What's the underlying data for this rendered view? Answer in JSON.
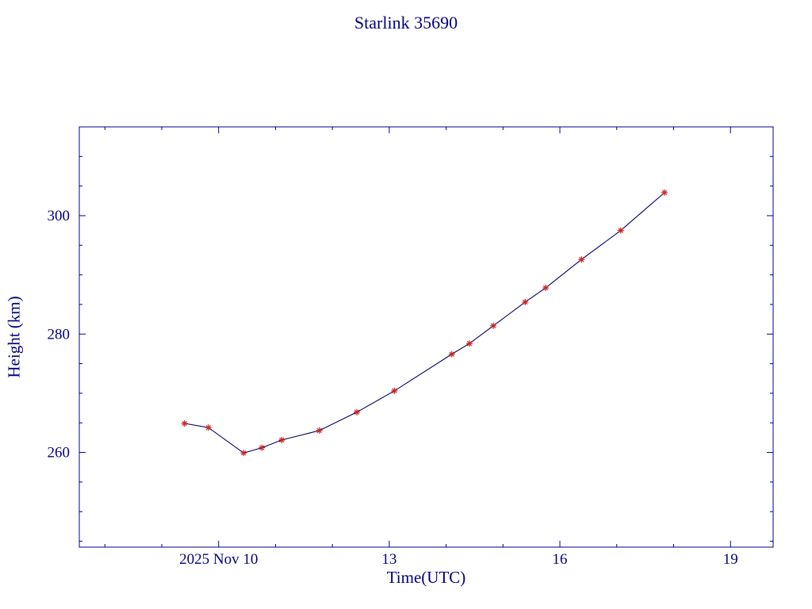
{
  "page": {
    "background_color": "#ffffff"
  },
  "chart_data": {
    "type": "line",
    "title": "Starlink 35690",
    "xlabel": "Time(UTC)",
    "ylabel": "Height (km)",
    "xlim": [
      7.55,
      19.75
    ],
    "ylim": [
      244,
      315
    ],
    "x_ticks": [
      {
        "value": 10,
        "label": "2025 Nov 10"
      },
      {
        "value": 13,
        "label": "13"
      },
      {
        "value": 16,
        "label": "16"
      },
      {
        "value": 19,
        "label": "19"
      }
    ],
    "x_minor_step": 1,
    "y_ticks": [
      {
        "value": 260,
        "label": "260"
      },
      {
        "value": 280,
        "label": "280"
      },
      {
        "value": 300,
        "label": "300"
      }
    ],
    "y_minor_step": 5,
    "grid": false,
    "legend": "none",
    "colors": {
      "axis": "#000080",
      "text": "#000080",
      "line": "#000066",
      "marker": "#cc2222",
      "background": "#ffffff"
    },
    "series": [
      {
        "name": "Starlink 35690 height",
        "marker": "asterisk",
        "x": [
          9.4,
          9.82,
          10.44,
          10.76,
          11.11,
          11.77,
          12.43,
          13.09,
          14.1,
          14.41,
          14.83,
          15.39,
          15.75,
          16.38,
          17.07,
          17.84
        ],
        "y": [
          264.9,
          264.2,
          259.9,
          260.8,
          262.1,
          263.7,
          266.8,
          270.4,
          276.6,
          278.4,
          281.4,
          285.4,
          287.8,
          292.6,
          297.5,
          303.9
        ]
      }
    ]
  }
}
